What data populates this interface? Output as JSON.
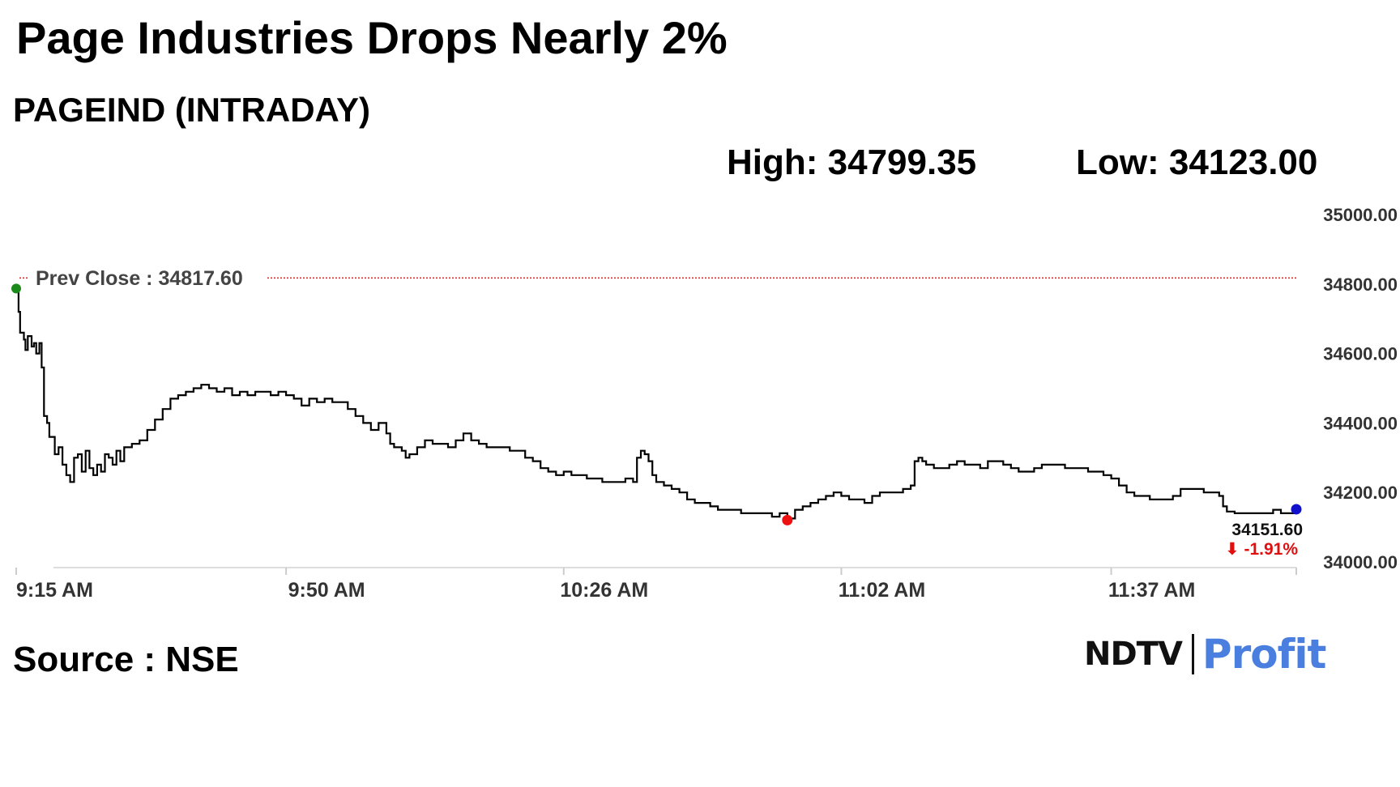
{
  "header": {
    "title": "Page Industries Drops Nearly 2%",
    "subtitle": "PAGEIND (INTRADAY)",
    "high_label": "High: 34799.35",
    "low_label": "Low: 34123.00"
  },
  "footer": {
    "source": "Source : NSE",
    "logo_ndtv": "NDTV",
    "logo_profit": "Profit"
  },
  "colors": {
    "line": "#000000",
    "prev_close": "#cc0000",
    "start_marker": "#1a8a1a",
    "low_marker": "#ee1111",
    "last_marker": "#1111cc",
    "change": "#e01010"
  },
  "chart_data": {
    "type": "line",
    "title": "PAGEIND (INTRADAY)",
    "xlabel": "",
    "ylabel": "",
    "ylim": [
      34000,
      35000
    ],
    "xlim_minutes": [
      0,
      157
    ],
    "yticks": [
      35000,
      34800,
      34600,
      34400,
      34200,
      34000
    ],
    "ytick_labels": [
      "35000.00",
      "34800.00",
      "34600.00",
      "34400.00",
      "34200.00",
      "34000.00"
    ],
    "xticks": [
      {
        "minute": 0,
        "label": "9:15 AM"
      },
      {
        "minute": 35,
        "label": "9:50 AM"
      },
      {
        "minute": 71,
        "label": "10:26 AM"
      },
      {
        "minute": 107,
        "label": "11:02 AM"
      },
      {
        "minute": 142,
        "label": "11:37 AM"
      }
    ],
    "grid": false,
    "prev_close": {
      "value": 34817.6,
      "label": "Prev Close : 34817.60"
    },
    "last": {
      "value": 34151.6,
      "label": "34151.60",
      "change_label": "⬇ -1.91%"
    },
    "series": [
      {
        "points": [
          [
            0,
            34780
          ],
          [
            0.3,
            34720
          ],
          [
            0.5,
            34660
          ],
          [
            1,
            34640
          ],
          [
            1.2,
            34610
          ],
          [
            1.5,
            34650
          ],
          [
            2,
            34620
          ],
          [
            2.3,
            34630
          ],
          [
            2.6,
            34600
          ],
          [
            3,
            34630
          ],
          [
            3.3,
            34560
          ],
          [
            3.6,
            34420
          ],
          [
            4,
            34400
          ],
          [
            4.3,
            34360
          ],
          [
            5,
            34310
          ],
          [
            5.5,
            34330
          ],
          [
            6,
            34280
          ],
          [
            6.5,
            34250
          ],
          [
            7,
            34230
          ],
          [
            7.5,
            34300
          ],
          [
            8,
            34310
          ],
          [
            8.5,
            34260
          ],
          [
            9,
            34320
          ],
          [
            9.5,
            34270
          ],
          [
            10,
            34250
          ],
          [
            10.5,
            34280
          ],
          [
            11,
            34260
          ],
          [
            11.5,
            34310
          ],
          [
            12,
            34300
          ],
          [
            12.5,
            34280
          ],
          [
            13,
            34320
          ],
          [
            13.5,
            34290
          ],
          [
            14,
            34330
          ],
          [
            15,
            34340
          ],
          [
            16,
            34350
          ],
          [
            17,
            34380
          ],
          [
            18,
            34410
          ],
          [
            19,
            34440
          ],
          [
            20,
            34470
          ],
          [
            21,
            34480
          ],
          [
            22,
            34490
          ],
          [
            23,
            34500
          ],
          [
            24,
            34510
          ],
          [
            25,
            34500
          ],
          [
            26,
            34490
          ],
          [
            27,
            34500
          ],
          [
            28,
            34480
          ],
          [
            29,
            34490
          ],
          [
            30,
            34480
          ],
          [
            31,
            34490
          ],
          [
            32,
            34490
          ],
          [
            33,
            34480
          ],
          [
            34,
            34490
          ],
          [
            35,
            34480
          ],
          [
            36,
            34470
          ],
          [
            37,
            34450
          ],
          [
            38,
            34470
          ],
          [
            39,
            34460
          ],
          [
            40,
            34470
          ],
          [
            41,
            34460
          ],
          [
            42,
            34460
          ],
          [
            43,
            34440
          ],
          [
            44,
            34420
          ],
          [
            45,
            34400
          ],
          [
            46,
            34380
          ],
          [
            47,
            34400
          ],
          [
            48,
            34370
          ],
          [
            48.5,
            34340
          ],
          [
            49,
            34330
          ],
          [
            50,
            34320
          ],
          [
            50.5,
            34300
          ],
          [
            51,
            34310
          ],
          [
            52,
            34330
          ],
          [
            53,
            34350
          ],
          [
            54,
            34340
          ],
          [
            55,
            34340
          ],
          [
            56,
            34330
          ],
          [
            57,
            34350
          ],
          [
            58,
            34370
          ],
          [
            59,
            34350
          ],
          [
            60,
            34340
          ],
          [
            61,
            34330
          ],
          [
            62,
            34330
          ],
          [
            63,
            34330
          ],
          [
            64,
            34320
          ],
          [
            65,
            34320
          ],
          [
            66,
            34300
          ],
          [
            67,
            34290
          ],
          [
            68,
            34270
          ],
          [
            69,
            34260
          ],
          [
            70,
            34250
          ],
          [
            71,
            34260
          ],
          [
            72,
            34250
          ],
          [
            73,
            34250
          ],
          [
            74,
            34240
          ],
          [
            75,
            34240
          ],
          [
            76,
            34230
          ],
          [
            77,
            34230
          ],
          [
            78,
            34230
          ],
          [
            79,
            34240
          ],
          [
            80,
            34230
          ],
          [
            80.5,
            34300
          ],
          [
            81,
            34320
          ],
          [
            81.5,
            34310
          ],
          [
            82,
            34290
          ],
          [
            82.5,
            34250
          ],
          [
            83,
            34230
          ],
          [
            84,
            34220
          ],
          [
            85,
            34210
          ],
          [
            86,
            34200
          ],
          [
            87,
            34180
          ],
          [
            88,
            34170
          ],
          [
            89,
            34170
          ],
          [
            90,
            34160
          ],
          [
            91,
            34150
          ],
          [
            92,
            34150
          ],
          [
            93,
            34150
          ],
          [
            94,
            34140
          ],
          [
            95,
            34140
          ],
          [
            96,
            34140
          ],
          [
            97,
            34140
          ],
          [
            98,
            34130
          ],
          [
            99,
            34140
          ],
          [
            100,
            34125
          ],
          [
            101,
            34150
          ],
          [
            102,
            34160
          ],
          [
            103,
            34170
          ],
          [
            104,
            34180
          ],
          [
            105,
            34190
          ],
          [
            106,
            34200
          ],
          [
            107,
            34190
          ],
          [
            108,
            34180
          ],
          [
            109,
            34180
          ],
          [
            110,
            34170
          ],
          [
            111,
            34190
          ],
          [
            112,
            34200
          ],
          [
            113,
            34200
          ],
          [
            114,
            34200
          ],
          [
            115,
            34210
          ],
          [
            116,
            34220
          ],
          [
            116.5,
            34290
          ],
          [
            117,
            34300
          ],
          [
            117.5,
            34290
          ],
          [
            118,
            34280
          ],
          [
            119,
            34270
          ],
          [
            120,
            34270
          ],
          [
            121,
            34280
          ],
          [
            122,
            34290
          ],
          [
            123,
            34280
          ],
          [
            124,
            34280
          ],
          [
            125,
            34270
          ],
          [
            126,
            34290
          ],
          [
            127,
            34290
          ],
          [
            128,
            34280
          ],
          [
            129,
            34270
          ],
          [
            130,
            34260
          ],
          [
            131,
            34260
          ],
          [
            132,
            34270
          ],
          [
            133,
            34280
          ],
          [
            134,
            34280
          ],
          [
            135,
            34280
          ],
          [
            136,
            34270
          ],
          [
            137,
            34270
          ],
          [
            138,
            34270
          ],
          [
            139,
            34260
          ],
          [
            140,
            34260
          ],
          [
            141,
            34250
          ],
          [
            142,
            34240
          ],
          [
            143,
            34220
          ],
          [
            144,
            34200
          ],
          [
            145,
            34190
          ],
          [
            146,
            34190
          ],
          [
            147,
            34180
          ],
          [
            148,
            34180
          ],
          [
            149,
            34180
          ],
          [
            150,
            34190
          ],
          [
            151,
            34210
          ],
          [
            152,
            34210
          ],
          [
            153,
            34210
          ],
          [
            154,
            34200
          ],
          [
            155,
            34200
          ],
          [
            156,
            34190
          ],
          [
            156.5,
            34160
          ],
          [
            157,
            34145
          ],
          [
            158,
            34140
          ],
          [
            159,
            34140
          ],
          [
            160,
            34140
          ],
          [
            161,
            34140
          ],
          [
            162,
            34140
          ],
          [
            163,
            34150
          ],
          [
            164,
            34140
          ],
          [
            165,
            34140
          ],
          [
            166,
            34151.6
          ]
        ]
      }
    ]
  }
}
